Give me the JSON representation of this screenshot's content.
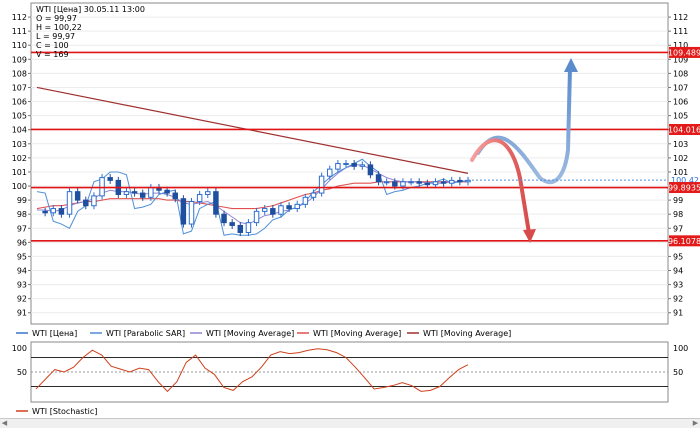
{
  "info": {
    "symbol_line": "WTI [Цена] 30.05.11 13:00",
    "open": "O = 99,97",
    "high": "H = 100,22",
    "low": "L = 99,97",
    "close": "C = 100",
    "volume": "V = 169"
  },
  "price_labels": {
    "last": "100,42",
    "level_1": "109.489",
    "level_2": "104.016",
    "level_3": "99.8935",
    "level_4": "96.1078"
  },
  "legend": [
    {
      "label": "WTI [Цена]",
      "color": "#3b73c6"
    },
    {
      "label": "WTI [Parabolic SAR]",
      "color": "#4f8fd8"
    },
    {
      "label": "WTI [Moving Average]",
      "color": "#8f84d6"
    },
    {
      "label": "WTI [Moving Average]",
      "color": "#e05050"
    },
    {
      "label": "WTI [Moving Average]",
      "color": "#a03030"
    }
  ],
  "stoch_legend": {
    "label": "WTI [Stochastic]",
    "color": "#d0401b"
  },
  "chart_data": [
    {
      "type": "candlestick",
      "title": "WTI [Цена] 30.05.11 13:00",
      "ylim": [
        90.2,
        113
      ],
      "y_ticks": [
        91,
        92,
        93,
        94,
        95,
        96,
        97,
        98,
        99,
        100,
        101,
        102,
        103,
        104,
        105,
        106,
        107,
        108,
        109,
        110,
        111,
        112
      ],
      "levels": [
        {
          "value": 109.489,
          "label": "109.489"
        },
        {
          "value": 104.016,
          "label": "104.016"
        },
        {
          "value": 99.8935,
          "label": "99.8935"
        },
        {
          "value": 96.1078,
          "label": "96.1078"
        }
      ],
      "last_price": 100.42,
      "price_path": [
        98.2,
        98.1,
        98.4,
        98.0,
        99.6,
        99.0,
        98.6,
        99.3,
        100.6,
        100.4,
        99.4,
        99.6,
        99.5,
        99.2,
        99.9,
        99.7,
        99.5,
        99.1,
        97.3,
        98.9,
        99.4,
        99.6,
        98.0,
        97.4,
        97.2,
        96.7,
        97.4,
        98.2,
        98.4,
        98.0,
        98.6,
        98.4,
        98.7,
        99.2,
        99.5,
        100.7,
        101.2,
        101.6,
        101.6,
        101.4,
        101.5,
        100.8,
        100.3,
        100.3,
        100.0,
        100.3,
        100.3,
        100.2,
        100.1,
        100.3,
        100.2,
        100.4,
        100.3,
        100.4
      ],
      "moving_average_slow": [
        {
          "x": 0,
          "y": 107.0
        },
        {
          "x": 53,
          "y": 100.9
        }
      ],
      "moving_average_mid": [
        98.4,
        98.5,
        98.6,
        98.6,
        98.7,
        98.8,
        98.9,
        98.9,
        99.0,
        99.1,
        99.1,
        99.1,
        99.1,
        99.1,
        99.1,
        99.1,
        99.0,
        99.0,
        98.9,
        98.9,
        98.8,
        98.7,
        98.6,
        98.5,
        98.4,
        98.4,
        98.4,
        98.4,
        98.5,
        98.6,
        98.8,
        99.0,
        99.2,
        99.4,
        99.5,
        99.7,
        99.8,
        100.0,
        100.1,
        100.2,
        100.2,
        100.2,
        100.3,
        100.3,
        100.3,
        100.3,
        100.3,
        100.3,
        100.3,
        100.3,
        100.3,
        100.3,
        100.3,
        100.3
      ],
      "moving_average_fast": [
        98.3,
        98.3,
        98.2,
        98.3,
        98.6,
        98.8,
        98.9,
        99.1,
        99.5,
        99.7,
        99.6,
        99.6,
        99.5,
        99.4,
        99.5,
        99.5,
        99.4,
        99.2,
        98.8,
        98.7,
        98.8,
        98.9,
        98.6,
        98.2,
        97.8,
        97.4,
        97.3,
        97.6,
        97.9,
        98.0,
        98.2,
        98.3,
        98.5,
        98.8,
        99.2,
        99.8,
        100.4,
        100.9,
        101.3,
        101.5,
        101.5,
        101.2,
        100.9,
        100.6,
        100.4,
        100.3,
        100.3,
        100.3,
        100.2,
        100.2,
        100.2,
        100.3,
        100.3,
        100.4
      ],
      "parabolic_sar": [
        99.6,
        99.5,
        97.5,
        97.3,
        97.0,
        98.2,
        98.6,
        100.3,
        100.5,
        101.0,
        101.0,
        100.8,
        98.4,
        98.5,
        98.7,
        99.4,
        99.6,
        99.7,
        96.6,
        96.8,
        98.4,
        98.7,
        98.9,
        96.5,
        96.6,
        96.5,
        96.5,
        96.6,
        97.0,
        97.6,
        97.8,
        98.3,
        98.5,
        98.9,
        99.6,
        100.1,
        100.6,
        101.0,
        101.3,
        101.6,
        101.9,
        101.4,
        101.0,
        99.4,
        99.6,
        99.7,
        99.9,
        100.0,
        100.2,
        100.3,
        100.5,
        100.2,
        100.3,
        100.4
      ]
    },
    {
      "type": "line",
      "title": "WTI [Stochastic]",
      "ylim": [
        -12,
        112
      ],
      "y_ticks": [
        50,
        100
      ],
      "reference_levels": [
        20,
        50,
        80
      ],
      "values": [
        15,
        35,
        55,
        50,
        60,
        80,
        95,
        85,
        62,
        56,
        50,
        58,
        55,
        30,
        10,
        30,
        70,
        85,
        58,
        45,
        18,
        12,
        30,
        40,
        60,
        85,
        92,
        88,
        90,
        95,
        98,
        96,
        90,
        80,
        60,
        38,
        15,
        18,
        22,
        28,
        22,
        10,
        12,
        20,
        38,
        55,
        65
      ]
    }
  ]
}
